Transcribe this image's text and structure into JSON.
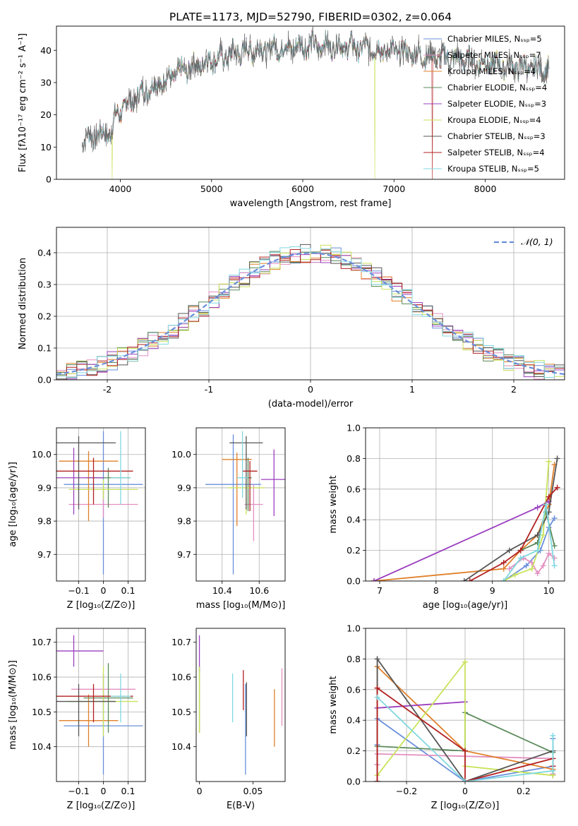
{
  "figure": {
    "title": "PLATE=1173, MJD=52790, FIBERID=0302, z=0.064"
  },
  "colors": {
    "chabrier_miles": "#6a8fdb",
    "salpeter_miles": "#e38fc0",
    "kroupa_miles": "#e0802a",
    "chabrier_elodie": "#5a8a5a",
    "salpeter_elodie": "#9b3fbf",
    "kroupa_elodie": "#c8e25a",
    "chabrier_stelib": "#555555",
    "salpeter_stelib": "#b22020",
    "kroupa_stelib": "#80d8e0",
    "gauss": "#6a8fdb",
    "grid": "#b0b0b0"
  },
  "chart_data": [
    {
      "id": "spectrum",
      "type": "line",
      "xlabel": "wavelength [Angstrom, rest frame]",
      "ylabel": "Flux [fλ10⁻¹⁷ erg cm⁻² s⁻¹ A⁻¹]",
      "xlim": [
        3300,
        8870
      ],
      "ylim": [
        0,
        47.5
      ],
      "xticks": [
        4000,
        5000,
        6000,
        7000,
        8000
      ],
      "yticks": [
        0,
        10,
        20,
        30,
        40
      ],
      "grid": false,
      "legend_position": "top-right",
      "legend": [
        "Chabrier MILES, Nₛₛₚ=5",
        "Salpeter MILES, Nₛₛₚ=7",
        "Kroupa MILES, Nₛₛₚ=4",
        "Chabrier ELODIE, Nₛₛₚ=4",
        "Salpeter ELODIE, Nₛₛₚ=3",
        "Kroupa ELODIE, Nₛₛₚ=4",
        "Chabrier STELIB, Nₛₛₚ=3",
        "Salpeter STELIB, Nₛₛₚ=4",
        "Kroupa STELIB, Nₛₛₚ=5"
      ],
      "continuum": {
        "x": [
          3580,
          3700,
          3900,
          3950,
          4100,
          4300,
          4500,
          4700,
          5000,
          5300,
          5600,
          6000,
          6300,
          6600,
          6900,
          7200,
          7500,
          7800,
          8000,
          8300,
          8500,
          8700
        ],
        "y": [
          12,
          13.5,
          15,
          20,
          24,
          28,
          31,
          34,
          37,
          39.5,
          40.5,
          41.5,
          41.5,
          41,
          40,
          39,
          38,
          37,
          36,
          35,
          34.5,
          34
        ]
      }
    },
    {
      "id": "residual_histogram",
      "type": "line",
      "xlabel": "(data-model)/error",
      "ylabel": "Normed distribution",
      "xlim": [
        -2.5,
        2.5
      ],
      "ylim": [
        0,
        0.48
      ],
      "xticks": [
        -2,
        -1,
        0,
        1,
        2
      ],
      "yticks": [
        0.0,
        0.1,
        0.2,
        0.3,
        0.4
      ],
      "grid": true,
      "legend_position": "top-right",
      "legend": [
        "𝒩(0, 1)"
      ],
      "bin_width": 0.1
    },
    {
      "id": "age_vs_Z",
      "type": "scatter",
      "xlabel": "Z [log₁₀(Z/Z⊙)]",
      "ylabel": "age  [log₁₀(age/yr)]",
      "xlim": [
        -0.19,
        0.17
      ],
      "ylim": [
        9.62,
        10.08
      ],
      "xticks": [
        -0.1,
        0.0,
        0.1
      ],
      "yticks": [
        9.7,
        9.8,
        9.9,
        10.0
      ],
      "grid": true,
      "points": [
        {
          "model": "chabrier_miles",
          "x": 0.0,
          "y": 9.91,
          "xerr": 0.16,
          "yerr": [
            0.27,
            0.16
          ]
        },
        {
          "model": "salpeter_miles",
          "x": 0.0,
          "y": 9.85,
          "xerr": 0.14,
          "yerr": [
            0.04,
            0.04
          ]
        },
        {
          "model": "kroupa_miles",
          "x": -0.06,
          "y": 9.98,
          "xerr": 0.12,
          "yerr": [
            0.18,
            0.03
          ]
        },
        {
          "model": "chabrier_elodie",
          "x": 0.02,
          "y": 9.93,
          "xerr": 0.09,
          "yerr": [
            0.09,
            0.03
          ]
        },
        {
          "model": "salpeter_elodie",
          "x": -0.12,
          "y": 9.93,
          "xerr": 0.12,
          "yerr": [
            0.11,
            0.09
          ]
        },
        {
          "model": "kroupa_elodie",
          "x": 0.0,
          "y": 9.895,
          "xerr": 0.14,
          "yerr": [
            0.03,
            0.03
          ]
        },
        {
          "model": "chabrier_stelib",
          "x": -0.1,
          "y": 10.035,
          "xerr": 0.15,
          "yerr": [
            0.2,
            0.02
          ]
        },
        {
          "model": "salpeter_stelib",
          "x": -0.04,
          "y": 9.95,
          "xerr": 0.16,
          "yerr": [
            0.1,
            0.04
          ]
        },
        {
          "model": "kroupa_stelib",
          "x": 0.07,
          "y": 9.93,
          "xerr": 0.04,
          "yerr": [
            0.08,
            0.14
          ]
        }
      ]
    },
    {
      "id": "age_vs_mass",
      "type": "scatter",
      "xlabel": "mass [log₁₀(M/M⊙)]",
      "ylabel": "",
      "xlim": [
        10.26,
        10.74
      ],
      "ylim": [
        9.62,
        10.08
      ],
      "xticks": [
        10.4,
        10.6
      ],
      "yticks": [
        9.7,
        9.8,
        9.9,
        10.0
      ],
      "grid": true,
      "points": [
        {
          "model": "chabrier_miles",
          "x": 10.46,
          "y": 9.91,
          "xerr": 0.15,
          "yerr": [
            0.27,
            0.15
          ]
        },
        {
          "model": "salpeter_miles",
          "x": 10.57,
          "y": 9.85,
          "xerr": 0.05,
          "yerr": [
            0.11,
            0.06
          ]
        },
        {
          "model": "kroupa_miles",
          "x": 10.48,
          "y": 9.985,
          "xerr": 0.08,
          "yerr": [
            0.2,
            0.02
          ]
        },
        {
          "model": "chabrier_elodie",
          "x": 10.54,
          "y": 9.93,
          "xerr": 0.02,
          "yerr": [
            0.1,
            0.06
          ]
        },
        {
          "model": "salpeter_elodie",
          "x": 10.68,
          "y": 9.925,
          "xerr": 0.07,
          "yerr": [
            0.11,
            0.09
          ]
        },
        {
          "model": "kroupa_elodie",
          "x": 10.53,
          "y": 9.9,
          "xerr": 0.1,
          "yerr": [
            0.08,
            0.03
          ]
        },
        {
          "model": "chabrier_stelib",
          "x": 10.53,
          "y": 10.035,
          "xerr": 0.09,
          "yerr": [
            0.2,
            0.02
          ]
        },
        {
          "model": "salpeter_stelib",
          "x": 10.55,
          "y": 9.95,
          "xerr": 0.04,
          "yerr": [
            0.12,
            0.03
          ]
        },
        {
          "model": "kroupa_stelib",
          "x": 10.51,
          "y": 9.93,
          "xerr": 0.03,
          "yerr": [
            0.06,
            0.14
          ]
        }
      ]
    },
    {
      "id": "weight_vs_age",
      "type": "line",
      "xlabel": "age  [log₁₀(age/yr)]",
      "ylabel": "mass weight",
      "xlim": [
        6.75,
        10.28
      ],
      "ylim": [
        0,
        1.0
      ],
      "xticks": [
        7,
        8,
        9,
        10
      ],
      "yticks": [
        0.0,
        0.2,
        0.4,
        0.6,
        0.8,
        1.0
      ],
      "grid": true,
      "series": [
        {
          "model": "chabrier_miles",
          "x": [
            9.2,
            9.6,
            9.85,
            10.0,
            10.1
          ],
          "y": [
            0.0,
            0.1,
            0.2,
            0.35,
            0.41
          ]
        },
        {
          "model": "salpeter_miles",
          "x": [
            9.3,
            9.55,
            9.7,
            9.8,
            9.9,
            10.0,
            10.1
          ],
          "y": [
            0.08,
            0.15,
            0.12,
            0.05,
            0.1,
            0.18,
            0.15
          ]
        },
        {
          "model": "kroupa_miles",
          "x": [
            6.9,
            9.2,
            9.5,
            9.8,
            10.0,
            10.1
          ],
          "y": [
            0.0,
            0.08,
            0.2,
            0.3,
            0.5,
            0.76
          ]
        },
        {
          "model": "chabrier_elodie",
          "x": [
            9.5,
            9.8,
            9.95,
            10.1
          ],
          "y": [
            0.2,
            0.25,
            0.45,
            0.23
          ]
        },
        {
          "model": "salpeter_elodie",
          "x": [
            6.9,
            9.8,
            10.0
          ],
          "y": [
            0.0,
            0.48,
            0.52
          ]
        },
        {
          "model": "kroupa_elodie",
          "x": [
            9.2,
            9.4,
            9.7,
            9.9,
            10.0
          ],
          "y": [
            0.0,
            0.04,
            0.08,
            0.3,
            0.78
          ]
        },
        {
          "model": "chabrier_stelib",
          "x": [
            8.5,
            9.3,
            9.8,
            10.0,
            10.15
          ],
          "y": [
            0.0,
            0.2,
            0.3,
            0.45,
            0.8
          ]
        },
        {
          "model": "salpeter_stelib",
          "x": [
            8.6,
            9.2,
            9.5,
            10.0,
            10.15
          ],
          "y": [
            0.0,
            0.12,
            0.2,
            0.55,
            0.61
          ]
        },
        {
          "model": "kroupa_stelib",
          "x": [
            9.2,
            9.5,
            9.8,
            9.95,
            10.1
          ],
          "y": [
            0.0,
            0.15,
            0.2,
            0.5,
            0.1
          ]
        }
      ]
    },
    {
      "id": "mass_vs_Z",
      "type": "scatter",
      "xlabel": "Z [log₁₀(Z/Z⊙)]",
      "ylabel": "mass [log₁₀(M/M⊙)]",
      "xlim": [
        -0.19,
        0.17
      ],
      "ylim": [
        10.3,
        10.74
      ],
      "xticks": [
        -0.1,
        0.0,
        0.1
      ],
      "yticks": [
        10.4,
        10.5,
        10.6,
        10.7
      ],
      "grid": true,
      "points": [
        {
          "model": "chabrier_miles",
          "x": 0.0,
          "y": 10.46,
          "xerr": 0.16,
          "yerr": [
            0.14,
            0.15
          ]
        },
        {
          "model": "salpeter_miles",
          "x": 0.0,
          "y": 10.565,
          "xerr": 0.13,
          "yerr": [
            0.04,
            0.04
          ]
        },
        {
          "model": "kroupa_miles",
          "x": -0.06,
          "y": 10.475,
          "xerr": 0.12,
          "yerr": [
            0.075,
            0.075
          ]
        },
        {
          "model": "chabrier_elodie",
          "x": 0.02,
          "y": 10.54,
          "xerr": 0.1,
          "yerr": [
            0.1,
            0.1
          ]
        },
        {
          "model": "salpeter_elodie",
          "x": -0.12,
          "y": 10.675,
          "xerr": 0.12,
          "yerr": [
            0.045,
            0.045
          ]
        },
        {
          "model": "kroupa_elodie",
          "x": 0.0,
          "y": 10.53,
          "xerr": 0.14,
          "yerr": [
            0.1,
            0.1
          ]
        },
        {
          "model": "chabrier_stelib",
          "x": -0.1,
          "y": 10.53,
          "xerr": 0.15,
          "yerr": [
            0.1,
            0.05
          ]
        },
        {
          "model": "salpeter_stelib",
          "x": -0.04,
          "y": 10.545,
          "xerr": 0.16,
          "yerr": [
            0.075,
            0.035
          ]
        },
        {
          "model": "kroupa_stelib",
          "x": 0.07,
          "y": 10.545,
          "xerr": 0.04,
          "yerr": [
            0.075,
            0.065
          ]
        }
      ]
    },
    {
      "id": "mass_vs_ebv",
      "type": "scatter",
      "xlabel": "E(B-V)",
      "ylabel": "",
      "xlim": [
        -0.003,
        0.08
      ],
      "ylim": [
        10.3,
        10.74
      ],
      "xticks": [
        0.0,
        0.05
      ],
      "ytick_labels": [
        "10.4",
        "10.5",
        "10.6",
        "10.7"
      ],
      "yticks": [
        10.4,
        10.5,
        10.6,
        10.7
      ],
      "grid": false,
      "points": [
        {
          "model": "chabrier_miles",
          "x": 0.043,
          "y": 10.46,
          "yerr": [
            0.14,
            0.12
          ]
        },
        {
          "model": "salpeter_miles",
          "x": 0.077,
          "y": 10.56,
          "yerr": [
            0.1,
            0.065
          ]
        },
        {
          "model": "kroupa_miles",
          "x": 0.07,
          "y": 10.48,
          "yerr": [
            0.08,
            0.085
          ]
        },
        {
          "model": "chabrier_elodie",
          "x": 0.0,
          "y": 10.54,
          "yerr": [
            0.1,
            0.09
          ]
        },
        {
          "model": "salpeter_elodie",
          "x": 0.0,
          "y": 10.675,
          "yerr": [
            0.06,
            0.045
          ]
        },
        {
          "model": "kroupa_elodie",
          "x": 0.0,
          "y": 10.52,
          "yerr": [
            0.08,
            0.11
          ]
        },
        {
          "model": "chabrier_stelib",
          "x": 0.044,
          "y": 10.53,
          "yerr": [
            0.1,
            0.055
          ]
        },
        {
          "model": "salpeter_stelib",
          "x": 0.041,
          "y": 10.56,
          "yerr": [
            0.055,
            0.06
          ]
        },
        {
          "model": "kroupa_stelib",
          "x": 0.031,
          "y": 10.54,
          "yerr": [
            0.07,
            0.07
          ]
        }
      ]
    },
    {
      "id": "weight_vs_Z",
      "type": "line",
      "xlabel": "Z [log₁₀(Z/Z⊙)]",
      "ylabel": "mass weight",
      "xlim": [
        -0.34,
        0.34
      ],
      "ylim": [
        0,
        1.0
      ],
      "xticks": [
        -0.2,
        0.0,
        0.2
      ],
      "yticks": [
        0.0,
        0.2,
        0.4,
        0.6,
        0.8,
        1.0
      ],
      "grid": true,
      "series": [
        {
          "model": "chabrier_miles",
          "x": [
            -0.3,
            -0.3,
            0.0,
            0.3,
            0.3
          ],
          "y": [
            0.24,
            0.41,
            0.0,
            0.1,
            0.28
          ]
        },
        {
          "model": "salpeter_miles",
          "x": [
            -0.3,
            -0.3,
            0.3,
            0.3,
            0.3
          ],
          "y": [
            0.11,
            0.18,
            0.15,
            0.08,
            0.05
          ]
        },
        {
          "model": "kroupa_miles",
          "x": [
            -0.3,
            -0.3,
            0.0,
            0.3
          ],
          "y": [
            0.0,
            0.75,
            0.2,
            0.08
          ]
        },
        {
          "model": "chabrier_elodie",
          "x": [
            -0.3,
            0.0,
            0.0,
            0.3,
            0.3
          ],
          "y": [
            0.23,
            0.2,
            0.45,
            0.19,
            0.04
          ]
        },
        {
          "model": "salpeter_elodie",
          "x": [
            -0.3,
            0.0
          ],
          "y": [
            0.48,
            0.52
          ]
        },
        {
          "model": "kroupa_elodie",
          "x": [
            -0.3,
            0.0,
            0.0,
            0.3
          ],
          "y": [
            0.04,
            0.78,
            0.1,
            0.04
          ]
        },
        {
          "model": "chabrier_stelib",
          "x": [
            -0.3,
            -0.3,
            0.0,
            0.3
          ],
          "y": [
            0.0,
            0.8,
            0.0,
            0.2
          ]
        },
        {
          "model": "salpeter_stelib",
          "x": [
            -0.3,
            -0.3,
            0.0,
            0.0,
            0.3,
            0.3
          ],
          "y": [
            0.0,
            0.61,
            0.2,
            0.0,
            0.15,
            0.1
          ]
        },
        {
          "model": "kroupa_stelib",
          "x": [
            -0.3,
            0.0,
            0.3,
            0.3
          ],
          "y": [
            0.55,
            0.0,
            0.07,
            0.3
          ]
        }
      ]
    }
  ]
}
